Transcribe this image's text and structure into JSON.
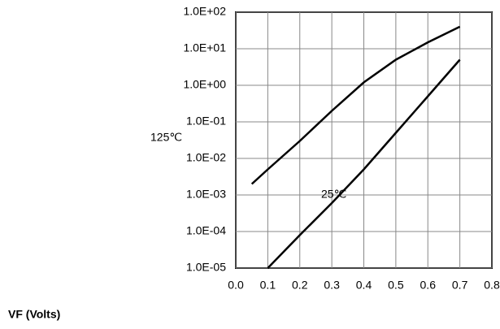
{
  "chart_data": {
    "type": "line",
    "x_label": "VF (Volts)",
    "x": [
      0.05,
      0.1,
      0.2,
      0.3,
      0.4,
      0.5,
      0.6,
      0.7
    ],
    "series": [
      {
        "name": "125℃",
        "color": "#000000",
        "values": [
          0.002,
          0.005,
          0.03,
          0.2,
          1.2,
          5,
          15,
          40
        ]
      },
      {
        "name": "25℃",
        "color": "#000000",
        "values": [
          null,
          1e-05,
          8e-05,
          0.0006,
          0.005,
          0.05,
          0.5,
          5
        ]
      }
    ],
    "xlim": [
      0,
      0.8
    ],
    "xticks": [
      {
        "value": 0,
        "label": "0.0"
      },
      {
        "value": 0.1,
        "label": "0.1"
      },
      {
        "value": 0.2,
        "label": "0.2"
      },
      {
        "value": 0.3,
        "label": "0.3"
      },
      {
        "value": 0.4,
        "label": "0.4"
      },
      {
        "value": 0.5,
        "label": "0.5"
      },
      {
        "value": 0.6,
        "label": "0.6"
      },
      {
        "value": 0.7,
        "label": "0.7"
      },
      {
        "value": 0.8,
        "label": "0.8"
      }
    ],
    "ylim": [
      1e-05,
      100
    ],
    "yticks": [
      {
        "value": 1e-05,
        "label": "1.0E-05"
      },
      {
        "value": 0.0001,
        "label": "1.0E-04"
      },
      {
        "value": 0.001,
        "label": "1.0E-03"
      },
      {
        "value": 0.01,
        "label": "1.0E-02"
      },
      {
        "value": 0.1,
        "label": "1.0E-01"
      },
      {
        "value": 1,
        "label": "1.0E+00"
      },
      {
        "value": 10,
        "label": "1.0E+01"
      },
      {
        "value": 100,
        "label": "1.0E+02"
      }
    ],
    "log_y": true,
    "grid": true
  }
}
